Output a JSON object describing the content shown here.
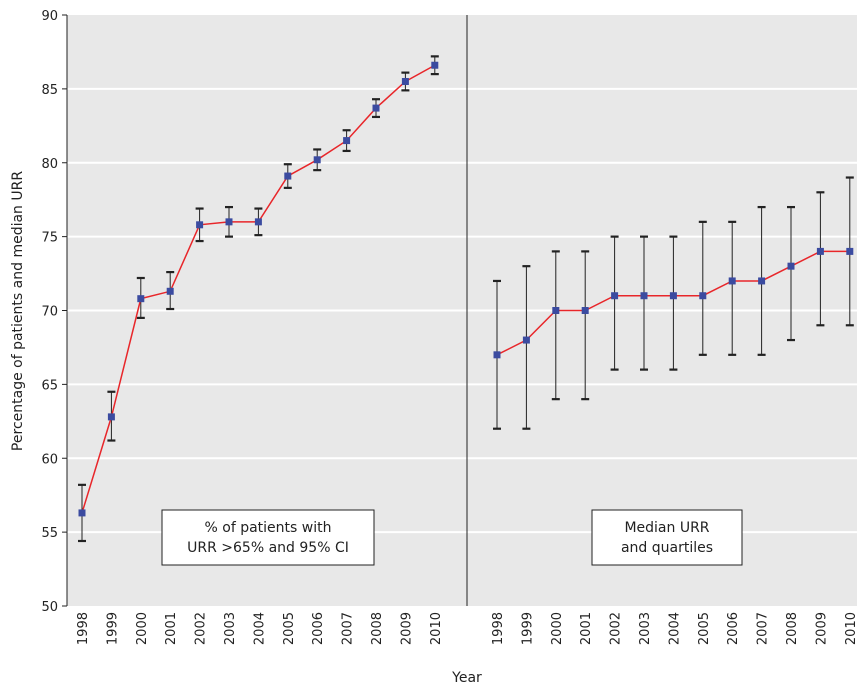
{
  "chart_data": {
    "type": "line",
    "xlabel": "Year",
    "ylabel": "Percentage of patients and median URR",
    "ylim": [
      50,
      90
    ],
    "y_ticks": [
      50,
      55,
      60,
      65,
      70,
      75,
      80,
      85,
      90
    ],
    "grid": "horizontal",
    "background_color": "#e8e8e8",
    "line_color": "#e8262a",
    "marker_color": "#3b4ba0",
    "errorbar_color": "#222222",
    "panels": [
      {
        "label_lines": [
          "% of patients with",
          "URR >65% and 95% CI"
        ],
        "x": [
          "1998",
          "1999",
          "2000",
          "2001",
          "2002",
          "2003",
          "2004",
          "2005",
          "2006",
          "2007",
          "2008",
          "2009",
          "2010"
        ],
        "values": [
          56.3,
          62.8,
          70.8,
          71.3,
          75.8,
          76.0,
          76.0,
          79.1,
          80.2,
          81.5,
          83.7,
          85.5,
          86.6
        ],
        "lower": [
          54.4,
          61.2,
          69.5,
          70.1,
          74.7,
          75.0,
          75.1,
          78.3,
          79.5,
          80.8,
          83.1,
          84.9,
          86.0
        ],
        "upper": [
          58.2,
          64.5,
          72.2,
          72.6,
          76.9,
          77.0,
          76.9,
          79.9,
          80.9,
          82.2,
          84.3,
          86.1,
          87.2
        ]
      },
      {
        "label_lines": [
          "Median URR",
          "and quartiles"
        ],
        "x": [
          "1998",
          "1999",
          "2000",
          "2001",
          "2002",
          "2003",
          "2004",
          "2005",
          "2006",
          "2007",
          "2008",
          "2009",
          "2010"
        ],
        "values": [
          67,
          68,
          70,
          70,
          71,
          71,
          71,
          71,
          72,
          72,
          73,
          74,
          74
        ],
        "lower": [
          62,
          62,
          64,
          64,
          66,
          66,
          66,
          67,
          67,
          67,
          68,
          69,
          69
        ],
        "upper": [
          72,
          73,
          74,
          74,
          75,
          75,
          75,
          76,
          76,
          77,
          77,
          78,
          79
        ]
      }
    ]
  }
}
